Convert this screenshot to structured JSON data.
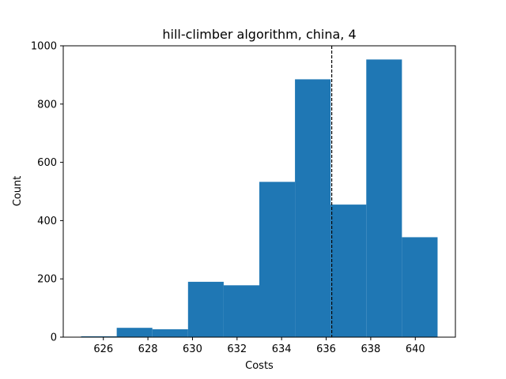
{
  "chart_data": {
    "type": "bar",
    "title": "hill-climber algorithm, china, 4",
    "xlabel": "Costs",
    "ylabel": "Count",
    "xlim": [
      624.2,
      641.8
    ],
    "ylim": [
      0,
      1000
    ],
    "xticks": [
      626,
      628,
      630,
      632,
      634,
      636,
      638,
      640
    ],
    "yticks": [
      0,
      200,
      400,
      600,
      800,
      1000
    ],
    "bin_edges": [
      625,
      626.6,
      628.2,
      629.8,
      631.4,
      633,
      634.6,
      636.2,
      637.8,
      639.4,
      641
    ],
    "values": [
      3,
      32,
      27,
      190,
      178,
      533,
      885,
      455,
      953,
      343
    ],
    "bar_color": "#1f77b4",
    "reference_line": {
      "x": 636.25,
      "style": "dashed",
      "color": "#000000"
    },
    "grid": false,
    "legend": "none"
  }
}
